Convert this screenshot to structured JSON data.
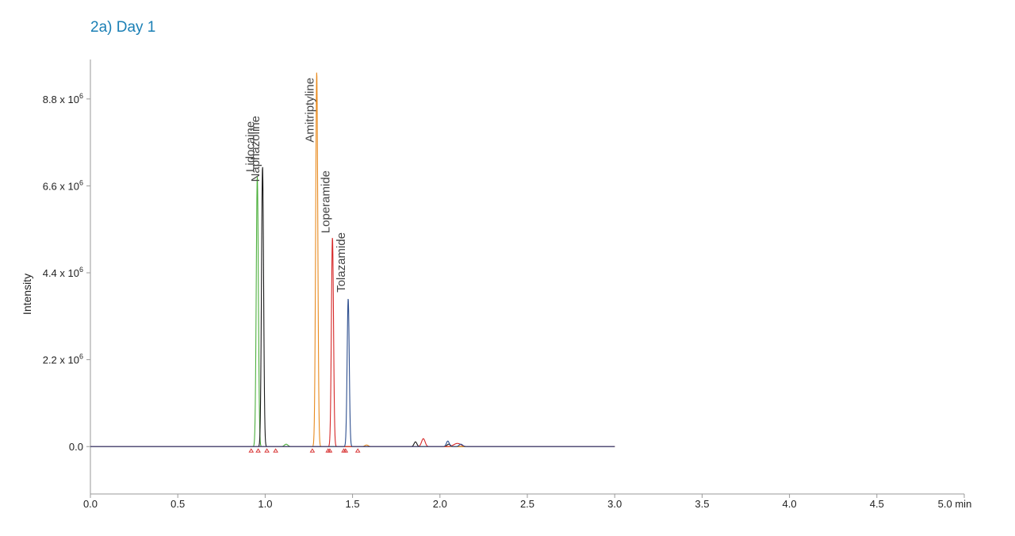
{
  "title": "2a) Day 1",
  "chart_data": {
    "type": "line",
    "title": "2a) Day 1",
    "ylabel": "Intensity",
    "xlabel": "",
    "x_unit": "min",
    "xlim": [
      0,
      5.0
    ],
    "ylim": [
      -1200000,
      9800000
    ],
    "x_ticks": [
      "0.0",
      "0.5",
      "1.0",
      "1.5",
      "2.0",
      "2.5",
      "3.0",
      "3.5",
      "4.0",
      "4.5",
      "5.0 min"
    ],
    "x_tick_values": [
      0,
      0.5,
      1.0,
      1.5,
      2.0,
      2.5,
      3.0,
      3.5,
      4.0,
      4.5,
      5.0
    ],
    "y_ticks": [
      {
        "value": 0,
        "base": "0.0",
        "exp": ""
      },
      {
        "value": 2200000,
        "base": "2.2 x 10",
        "exp": "6"
      },
      {
        "value": 4400000,
        "base": "4.4 x 10",
        "exp": "6"
      },
      {
        "value": 6600000,
        "base": "6.6 x 10",
        "exp": "6"
      },
      {
        "value": 8800000,
        "base": "8.8 x 10",
        "exp": "6"
      }
    ],
    "grid": false,
    "trace_end_x": 3.0,
    "series": [
      {
        "name": "Lidocaine",
        "color": "#4caf3c",
        "peaks": [
          {
            "rt": 0.955,
            "height": 6850000,
            "width": 0.006
          },
          {
            "rt": 1.12,
            "height": 60000,
            "width": 0.01
          }
        ]
      },
      {
        "name": "Naphazoline",
        "color": "#1a1a1a",
        "peaks": [
          {
            "rt": 0.985,
            "height": 7100000,
            "width": 0.006
          },
          {
            "rt": 1.86,
            "height": 120000,
            "width": 0.008
          },
          {
            "rt": 2.05,
            "height": 60000,
            "width": 0.01
          }
        ]
      },
      {
        "name": "Amitriptyline",
        "color": "#e88a1e",
        "peaks": [
          {
            "rt": 1.295,
            "height": 9500000,
            "width": 0.006
          },
          {
            "rt": 1.58,
            "height": 40000,
            "width": 0.01
          }
        ]
      },
      {
        "name": "Loperamide",
        "color": "#d62828",
        "peaks": [
          {
            "rt": 1.385,
            "height": 5300000,
            "width": 0.006
          },
          {
            "rt": 1.905,
            "height": 200000,
            "width": 0.01
          },
          {
            "rt": 2.1,
            "height": 80000,
            "width": 0.02
          }
        ]
      },
      {
        "name": "Tolazamide",
        "color": "#2e4f8f",
        "peaks": [
          {
            "rt": 1.475,
            "height": 3750000,
            "width": 0.006
          },
          {
            "rt": 2.045,
            "height": 140000,
            "width": 0.008
          },
          {
            "rt": 2.12,
            "height": 60000,
            "width": 0.01
          }
        ]
      }
    ],
    "annotations": [
      {
        "text": "Lidocaine",
        "x": 0.955,
        "y": 6950000
      },
      {
        "text": "Naphazoline",
        "x": 0.985,
        "y": 6700000
      },
      {
        "text": "Amitriptyline",
        "x": 1.295,
        "y": 7700000
      },
      {
        "text": "Loperamide",
        "x": 1.385,
        "y": 5400000
      },
      {
        "text": "Tolazamide",
        "x": 1.475,
        "y": 3900000
      }
    ],
    "integration_markers": [
      0.92,
      0.96,
      1.01,
      1.06,
      1.27,
      1.36,
      1.37,
      1.45,
      1.46,
      1.53
    ],
    "marker_color": "#d62828"
  }
}
